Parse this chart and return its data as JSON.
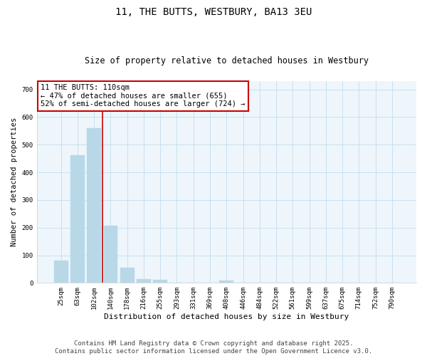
{
  "title": "11, THE BUTTS, WESTBURY, BA13 3EU",
  "subtitle": "Size of property relative to detached houses in Westbury",
  "xlabel": "Distribution of detached houses by size in Westbury",
  "ylabel": "Number of detached properties",
  "categories": [
    "25sqm",
    "63sqm",
    "102sqm",
    "140sqm",
    "178sqm",
    "216sqm",
    "255sqm",
    "293sqm",
    "331sqm",
    "369sqm",
    "408sqm",
    "446sqm",
    "484sqm",
    "522sqm",
    "561sqm",
    "599sqm",
    "637sqm",
    "675sqm",
    "714sqm",
    "752sqm",
    "790sqm"
  ],
  "values": [
    80,
    462,
    560,
    207,
    55,
    15,
    10,
    0,
    0,
    0,
    8,
    0,
    0,
    0,
    0,
    0,
    0,
    0,
    0,
    0,
    0
  ],
  "bar_color": "#b8d8e8",
  "bar_edge_color": "#b8d8e8",
  "grid_color": "#c8dff0",
  "bg_color": "#eef6fb",
  "annotation_box_color": "#cc0000",
  "annotation_text": "11 THE BUTTS: 110sqm\n← 47% of detached houses are smaller (655)\n52% of semi-detached houses are larger (724) →",
  "vline_x_index": 2.5,
  "vline_color": "#cc0000",
  "ylim": [
    0,
    730
  ],
  "yticks": [
    0,
    100,
    200,
    300,
    400,
    500,
    600,
    700
  ],
  "footer_text": "Contains HM Land Registry data © Crown copyright and database right 2025.\nContains public sector information licensed under the Open Government Licence v3.0.",
  "title_fontsize": 10,
  "subtitle_fontsize": 8.5,
  "xlabel_fontsize": 8,
  "ylabel_fontsize": 7.5,
  "tick_fontsize": 6.5,
  "annotation_fontsize": 7.5,
  "footer_fontsize": 6.5
}
